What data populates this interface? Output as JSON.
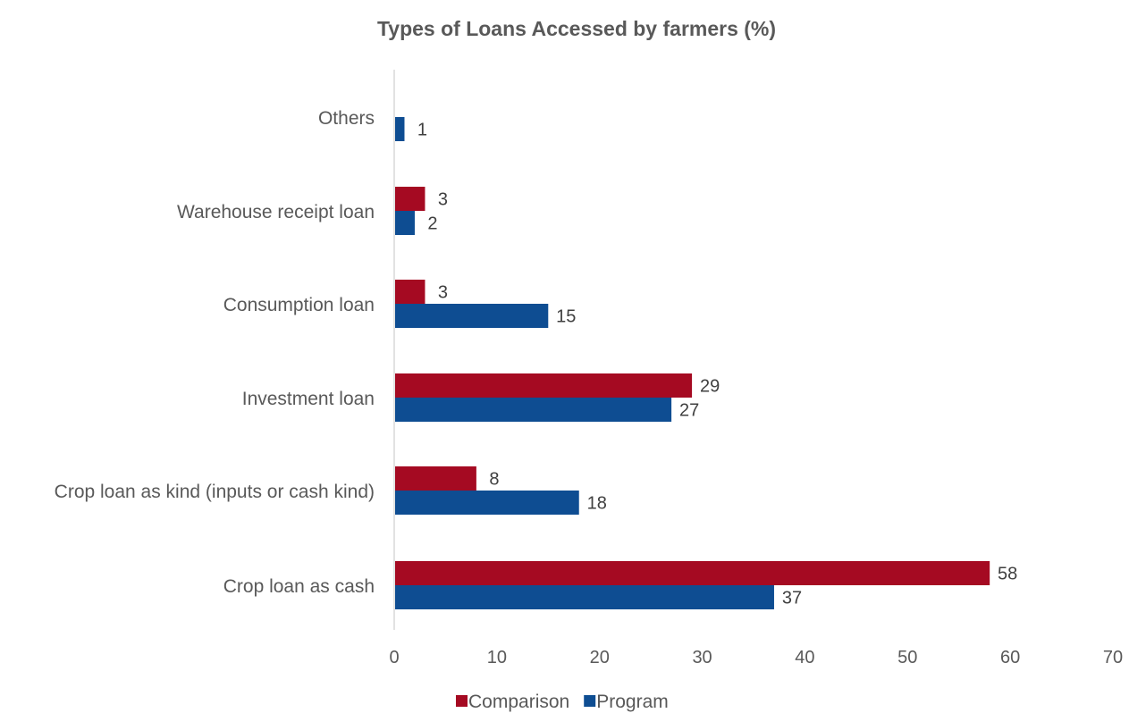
{
  "chart_data": {
    "type": "bar",
    "orientation": "horizontal",
    "title": "Types of Loans Accessed by farmers (%)",
    "categories": [
      "Crop loan as cash",
      "Crop loan as kind (inputs or cash kind)",
      "Investment loan",
      "Consumption loan",
      "Warehouse receipt loan",
      "Others"
    ],
    "series": [
      {
        "name": "Comparison",
        "color": "#A50A22",
        "values": [
          58,
          8,
          29,
          3,
          3,
          null
        ]
      },
      {
        "name": "Program",
        "color": "#0E4D92",
        "values": [
          37,
          18,
          27,
          15,
          2,
          1
        ]
      }
    ],
    "xlim": [
      0,
      70
    ],
    "xticks": [
      0,
      10,
      20,
      30,
      40,
      50,
      60,
      70
    ],
    "grid": false,
    "legend": "bottom"
  }
}
